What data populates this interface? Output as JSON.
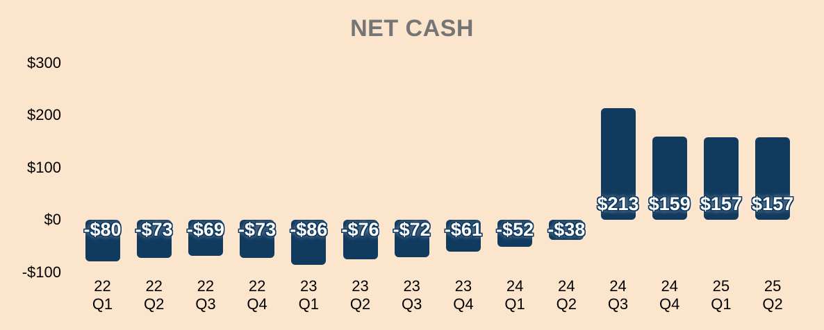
{
  "title": "NET CASH",
  "colors": {
    "background": "#fce5cd",
    "bar": "#113a5f",
    "title_text": "#757575",
    "axis_text": "#000000",
    "bar_label_text": "#ffffff"
  },
  "chart_data": {
    "type": "bar",
    "title": "NET CASH",
    "xlabel": "",
    "ylabel": "",
    "grid": false,
    "legend": "none",
    "ylim": [
      -100,
      300
    ],
    "categories": [
      "22 Q1",
      "22 Q2",
      "22 Q3",
      "22 Q4",
      "23 Q1",
      "23 Q2",
      "23 Q3",
      "23 Q4",
      "24 Q1",
      "24 Q2",
      "24 Q3",
      "24 Q4",
      "25 Q1",
      "25 Q2"
    ],
    "values": [
      -80,
      -73,
      -69,
      -73,
      -86,
      -76,
      -72,
      -61,
      -52,
      -38,
      213,
      159,
      157,
      157
    ],
    "value_labels": [
      "-$80",
      "-$73",
      "-$69",
      "-$73",
      "-$86",
      "-$76",
      "-$72",
      "-$61",
      "-$52",
      "-$38",
      "$213",
      "$159",
      "$157",
      "$157"
    ],
    "y_ticks": [
      {
        "value": 300,
        "label": "$300"
      },
      {
        "value": 200,
        "label": "$200"
      },
      {
        "value": 100,
        "label": "$100"
      },
      {
        "value": 0,
        "label": "$0"
      },
      {
        "value": -100,
        "label": "-$100"
      }
    ]
  }
}
